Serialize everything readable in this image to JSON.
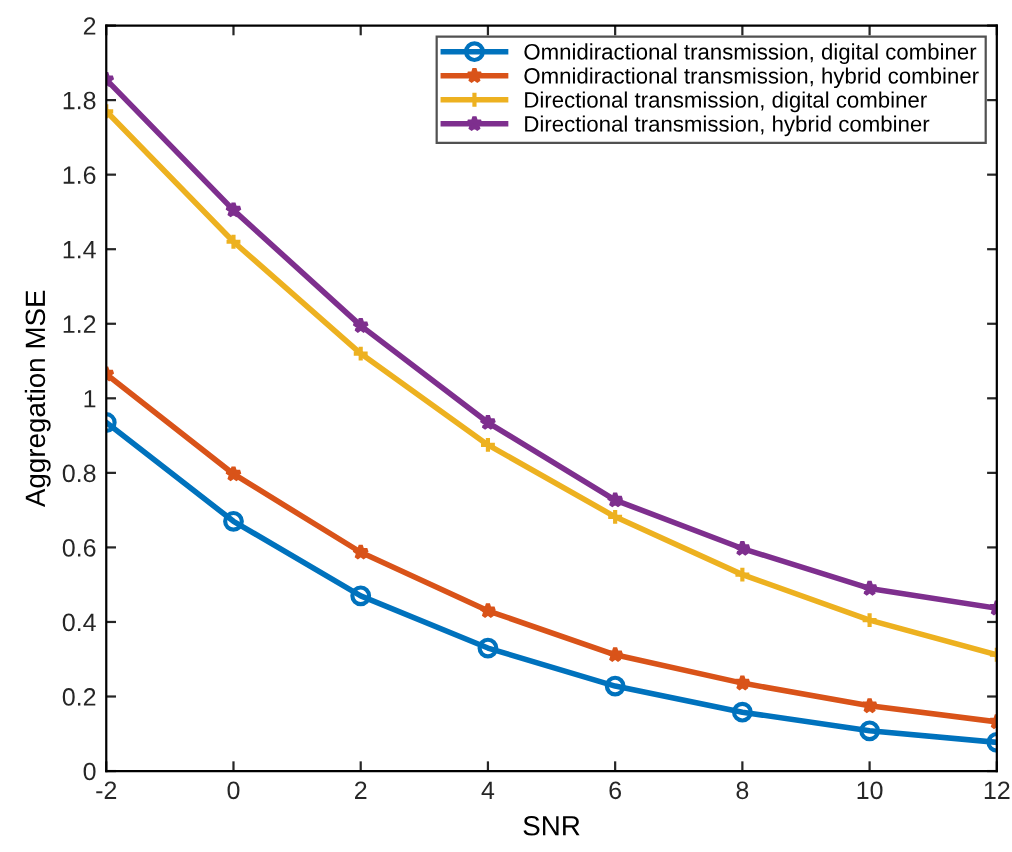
{
  "chart_data": {
    "type": "line",
    "xlabel": "SNR",
    "ylabel": "Aggregation MSE",
    "x": [
      -2,
      0,
      2,
      4,
      6,
      8,
      10,
      12
    ],
    "series": [
      {
        "name": "Omnidiractional transmission, digital combiner",
        "color": "#0072bd",
        "marker": "circle",
        "values": [
          0.935,
          0.67,
          0.47,
          0.33,
          0.228,
          0.158,
          0.108,
          0.077
        ]
      },
      {
        "name": "Omnidiractional transmission, hybrid combiner",
        "color": "#d95319",
        "marker": "star",
        "values": [
          1.065,
          0.797,
          0.587,
          0.43,
          0.312,
          0.236,
          0.175,
          0.132
        ]
      },
      {
        "name": "Directional transmission, digital combiner",
        "color": "#edb120",
        "marker": "cross",
        "values": [
          1.77,
          1.42,
          1.12,
          0.875,
          0.682,
          0.527,
          0.405,
          0.312
        ]
      },
      {
        "name": "Directional transmission, hybrid combiner",
        "color": "#7e2f8e",
        "marker": "star",
        "values": [
          1.855,
          1.505,
          1.195,
          0.935,
          0.727,
          0.597,
          0.49,
          0.437
        ]
      }
    ],
    "xlim": [
      -2,
      12
    ],
    "xticks": [
      -2,
      0,
      2,
      4,
      6,
      8,
      10,
      12
    ],
    "ylim": [
      0,
      2
    ],
    "yticks": [
      0,
      0.2,
      0.4,
      0.6,
      0.8,
      1,
      1.2,
      1.4,
      1.6,
      1.8,
      2
    ],
    "grid": false,
    "legend": "top right",
    "line_style": "solid"
  }
}
